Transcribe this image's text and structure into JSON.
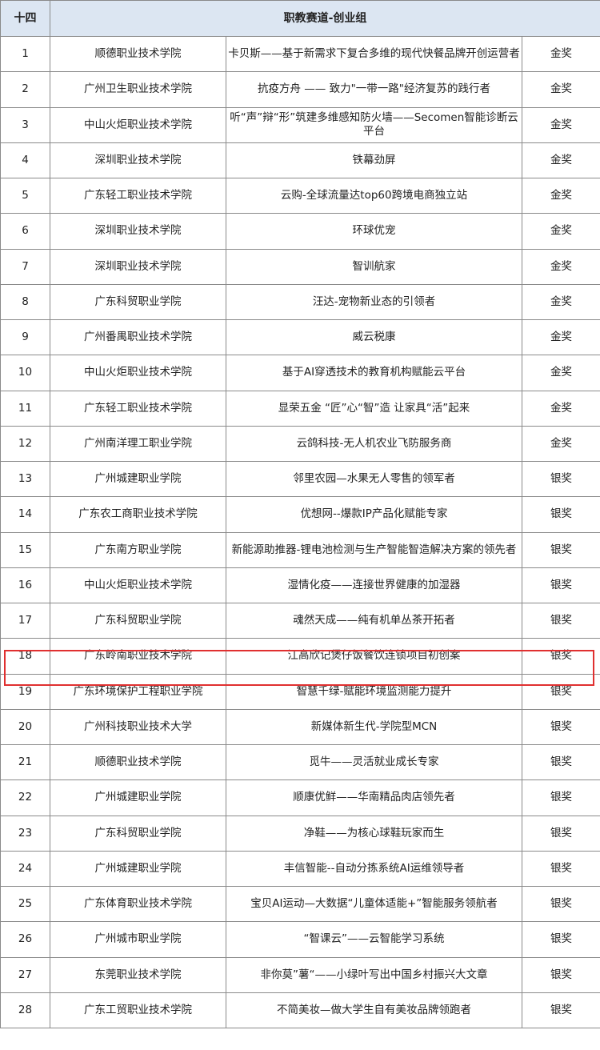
{
  "header": {
    "section_no": "十四",
    "title": "职教赛道-创业组"
  },
  "highlight_color": "#e03030",
  "highlighted_row": "18",
  "rows": [
    {
      "no": "1",
      "school": "顺德职业技术学院",
      "project": "卡贝斯——基于新需求下复合多维的现代快餐品牌开创运营者",
      "award": "金奖"
    },
    {
      "no": "2",
      "school": "广州卫生职业技术学院",
      "project": "抗疫方舟 —— 致力\"一带一路\"经济复苏的践行者",
      "award": "金奖"
    },
    {
      "no": "3",
      "school": "中山火炬职业技术学院",
      "project": "听“声”辩“形”筑建多维感知防火墙——Secomen智能诊断云平台",
      "award": "金奖"
    },
    {
      "no": "4",
      "school": "深圳职业技术学院",
      "project": "铁幕劲屏",
      "award": "金奖"
    },
    {
      "no": "5",
      "school": "广东轻工职业技术学院",
      "project": "云购-全球流量达top60跨境电商独立站",
      "award": "金奖"
    },
    {
      "no": "6",
      "school": "深圳职业技术学院",
      "project": "环球优宠",
      "award": "金奖"
    },
    {
      "no": "7",
      "school": "深圳职业技术学院",
      "project": "智训航家",
      "award": "金奖"
    },
    {
      "no": "8",
      "school": "广东科贸职业学院",
      "project": "汪达-宠物新业态的引领者",
      "award": "金奖"
    },
    {
      "no": "9",
      "school": "广州番禺职业技术学院",
      "project": "威云税康",
      "award": "金奖"
    },
    {
      "no": "10",
      "school": "中山火炬职业技术学院",
      "project": "基于AI穿透技术的教育机构赋能云平台",
      "award": "金奖"
    },
    {
      "no": "11",
      "school": "广东轻工职业技术学院",
      "project": "显荣五金 “匠”心“智”造 让家具“活”起来",
      "award": "金奖"
    },
    {
      "no": "12",
      "school": "广州南洋理工职业学院",
      "project": "云鸽科技-无人机农业飞防服务商",
      "award": "金奖"
    },
    {
      "no": "13",
      "school": "广州城建职业学院",
      "project": "邻里农园—水果无人零售的领军者",
      "award": "银奖"
    },
    {
      "no": "14",
      "school": "广东农工商职业技术学院",
      "project": "优想网--爆款IP产品化赋能专家",
      "award": "银奖"
    },
    {
      "no": "15",
      "school": "广东南方职业学院",
      "project": "新能源助推器-锂电池检测与生产智能智造解决方案的领先者",
      "award": "银奖"
    },
    {
      "no": "16",
      "school": "中山火炬职业技术学院",
      "project": "湿情化疫——连接世界健康的加湿器",
      "award": "银奖"
    },
    {
      "no": "17",
      "school": "广东科贸职业学院",
      "project": "魂然天成——纯有机单丛茶开拓者",
      "award": "银奖"
    },
    {
      "no": "18",
      "school": "广东岭南职业技术学院",
      "project": "江高欣记煲仔饭餐饮连锁项目初创案",
      "award": "银奖"
    },
    {
      "no": "19",
      "school": "广东环境保护工程职业学院",
      "project": "智慧千绿-赋能环境监测能力提升",
      "award": "银奖"
    },
    {
      "no": "20",
      "school": "广州科技职业技术大学",
      "project": "新媒体新生代-学院型MCN",
      "award": "银奖"
    },
    {
      "no": "21",
      "school": "顺德职业技术学院",
      "project": "觅牛——灵活就业成长专家",
      "award": "银奖"
    },
    {
      "no": "22",
      "school": "广州城建职业学院",
      "project": "顺康优鲜——华南精品肉店领先者",
      "award": "银奖"
    },
    {
      "no": "23",
      "school": "广东科贸职业学院",
      "project": "净鞋——为核心球鞋玩家而生",
      "award": "银奖"
    },
    {
      "no": "24",
      "school": "广州城建职业学院",
      "project": "丰信智能--自动分拣系统AI运维领导者",
      "award": "银奖"
    },
    {
      "no": "25",
      "school": "广东体育职业技术学院",
      "project": "宝贝AI运动—大数据“儿童体适能+”智能服务领航者",
      "award": "银奖"
    },
    {
      "no": "26",
      "school": "广州城市职业学院",
      "project": "“智课云”——云智能学习系统",
      "award": "银奖"
    },
    {
      "no": "27",
      "school": "东莞职业技术学院",
      "project": "非你莫”薯“——小绿叶写出中国乡村振兴大文章",
      "award": "银奖"
    },
    {
      "no": "28",
      "school": "广东工贸职业技术学院",
      "project": "不简美妆—做大学生自有美妆品牌领跑者",
      "award": "银奖"
    }
  ]
}
